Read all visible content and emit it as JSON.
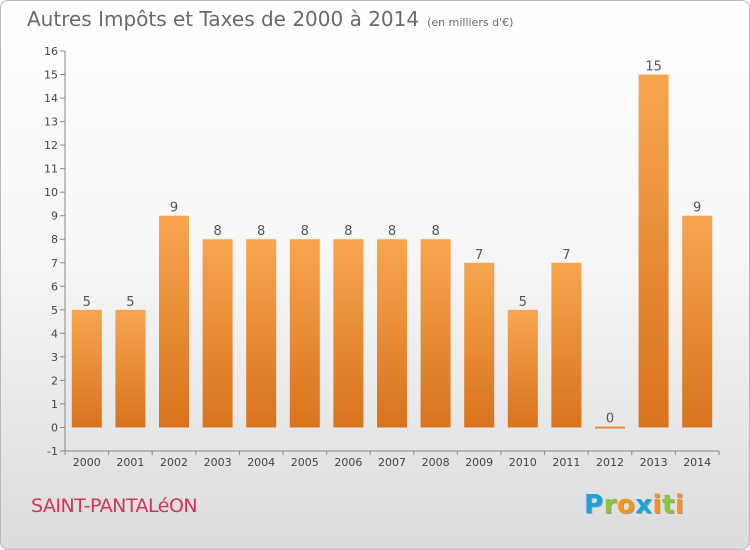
{
  "chart_data": {
    "type": "bar",
    "title": "Autres Impôts et Taxes de 2000 à 2014",
    "subtitle": "(en milliers d'€)",
    "xlabel": "",
    "ylabel": "",
    "categories": [
      "2000",
      "2001",
      "2002",
      "2003",
      "2004",
      "2005",
      "2006",
      "2007",
      "2008",
      "2009",
      "2010",
      "2011",
      "2012",
      "2013",
      "2014"
    ],
    "values": [
      5,
      5,
      9,
      8,
      8,
      8,
      8,
      8,
      8,
      7,
      5,
      7,
      0,
      15,
      9
    ],
    "data_labels": [
      "5",
      "5",
      "9",
      "8",
      "8",
      "8",
      "8",
      "8",
      "8",
      "7",
      "5",
      "7",
      "0",
      "15",
      "9"
    ],
    "ylim": [
      -1,
      16
    ],
    "yticks": [
      -1,
      0,
      1,
      2,
      3,
      4,
      5,
      6,
      7,
      8,
      9,
      10,
      11,
      12,
      13,
      14,
      15,
      16
    ],
    "grid": false,
    "colors": {
      "bar_top": "#f7a64f",
      "bar_bottom": "#d9731d",
      "label": "#555555",
      "axis": "#888888"
    }
  },
  "footer": {
    "commune": "SAINT-PANTALéON",
    "logo_letters": [
      {
        "char": "P",
        "color": "#1aa3d8"
      },
      {
        "char": "r",
        "color": "#8cc63f"
      },
      {
        "char": "o",
        "color": "#f7941d"
      },
      {
        "char": "x",
        "color": "#1aa3d8"
      },
      {
        "char": "i",
        "color": "#f7941d"
      },
      {
        "char": "t",
        "color": "#8cc63f"
      },
      {
        "char": "i",
        "color": "#f7941d"
      }
    ]
  }
}
